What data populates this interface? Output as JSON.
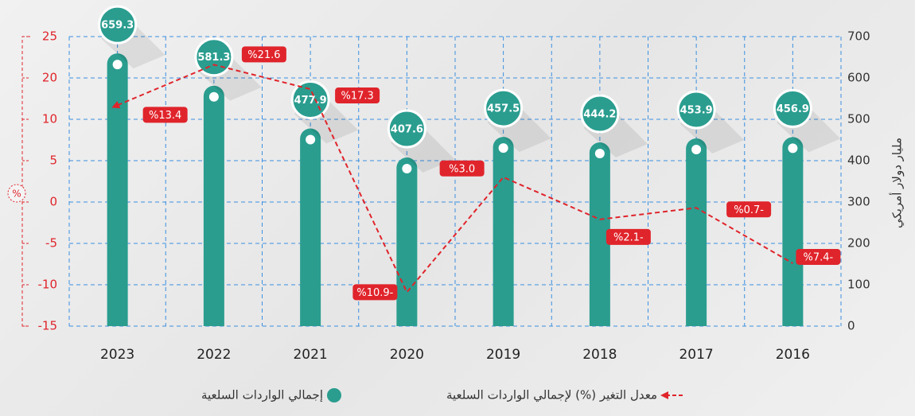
{
  "chart_data": {
    "type": "bar",
    "categories": [
      "2023",
      "2022",
      "2021",
      "2020",
      "2019",
      "2018",
      "2017",
      "2016"
    ],
    "y_label": "مليار دولار أمريكي",
    "y2_label": "%",
    "ylim": [
      0,
      700
    ],
    "yticks": [
      0,
      100,
      200,
      300,
      400,
      500,
      600,
      700
    ],
    "y2lim": [
      -15,
      25
    ],
    "y2ticks": [
      -15,
      -10,
      -5,
      0,
      5,
      10,
      20,
      25
    ],
    "grid": true,
    "series": [
      {
        "name": "إجمالي الواردات السلعية",
        "type": "bar",
        "color": "#2a9d8f",
        "values": [
          659.3,
          581.3,
          477.9,
          407.6,
          457.5,
          444.2,
          453.9,
          456.9
        ]
      },
      {
        "name": "معدل التغير (%) لإجمالي الواردات السلعية",
        "type": "line",
        "axis": "y2",
        "color": "#e0242b",
        "values": [
          13.4,
          21.6,
          17.3,
          -10.9,
          3.0,
          -2.1,
          -0.7,
          -7.4
        ],
        "value_labels": [
          "%13.4",
          "%21.6",
          "%17.3",
          "%10.9-",
          "%3.0",
          "%2.1-",
          "%0.7-",
          "%7.4-"
        ]
      }
    ]
  }
}
